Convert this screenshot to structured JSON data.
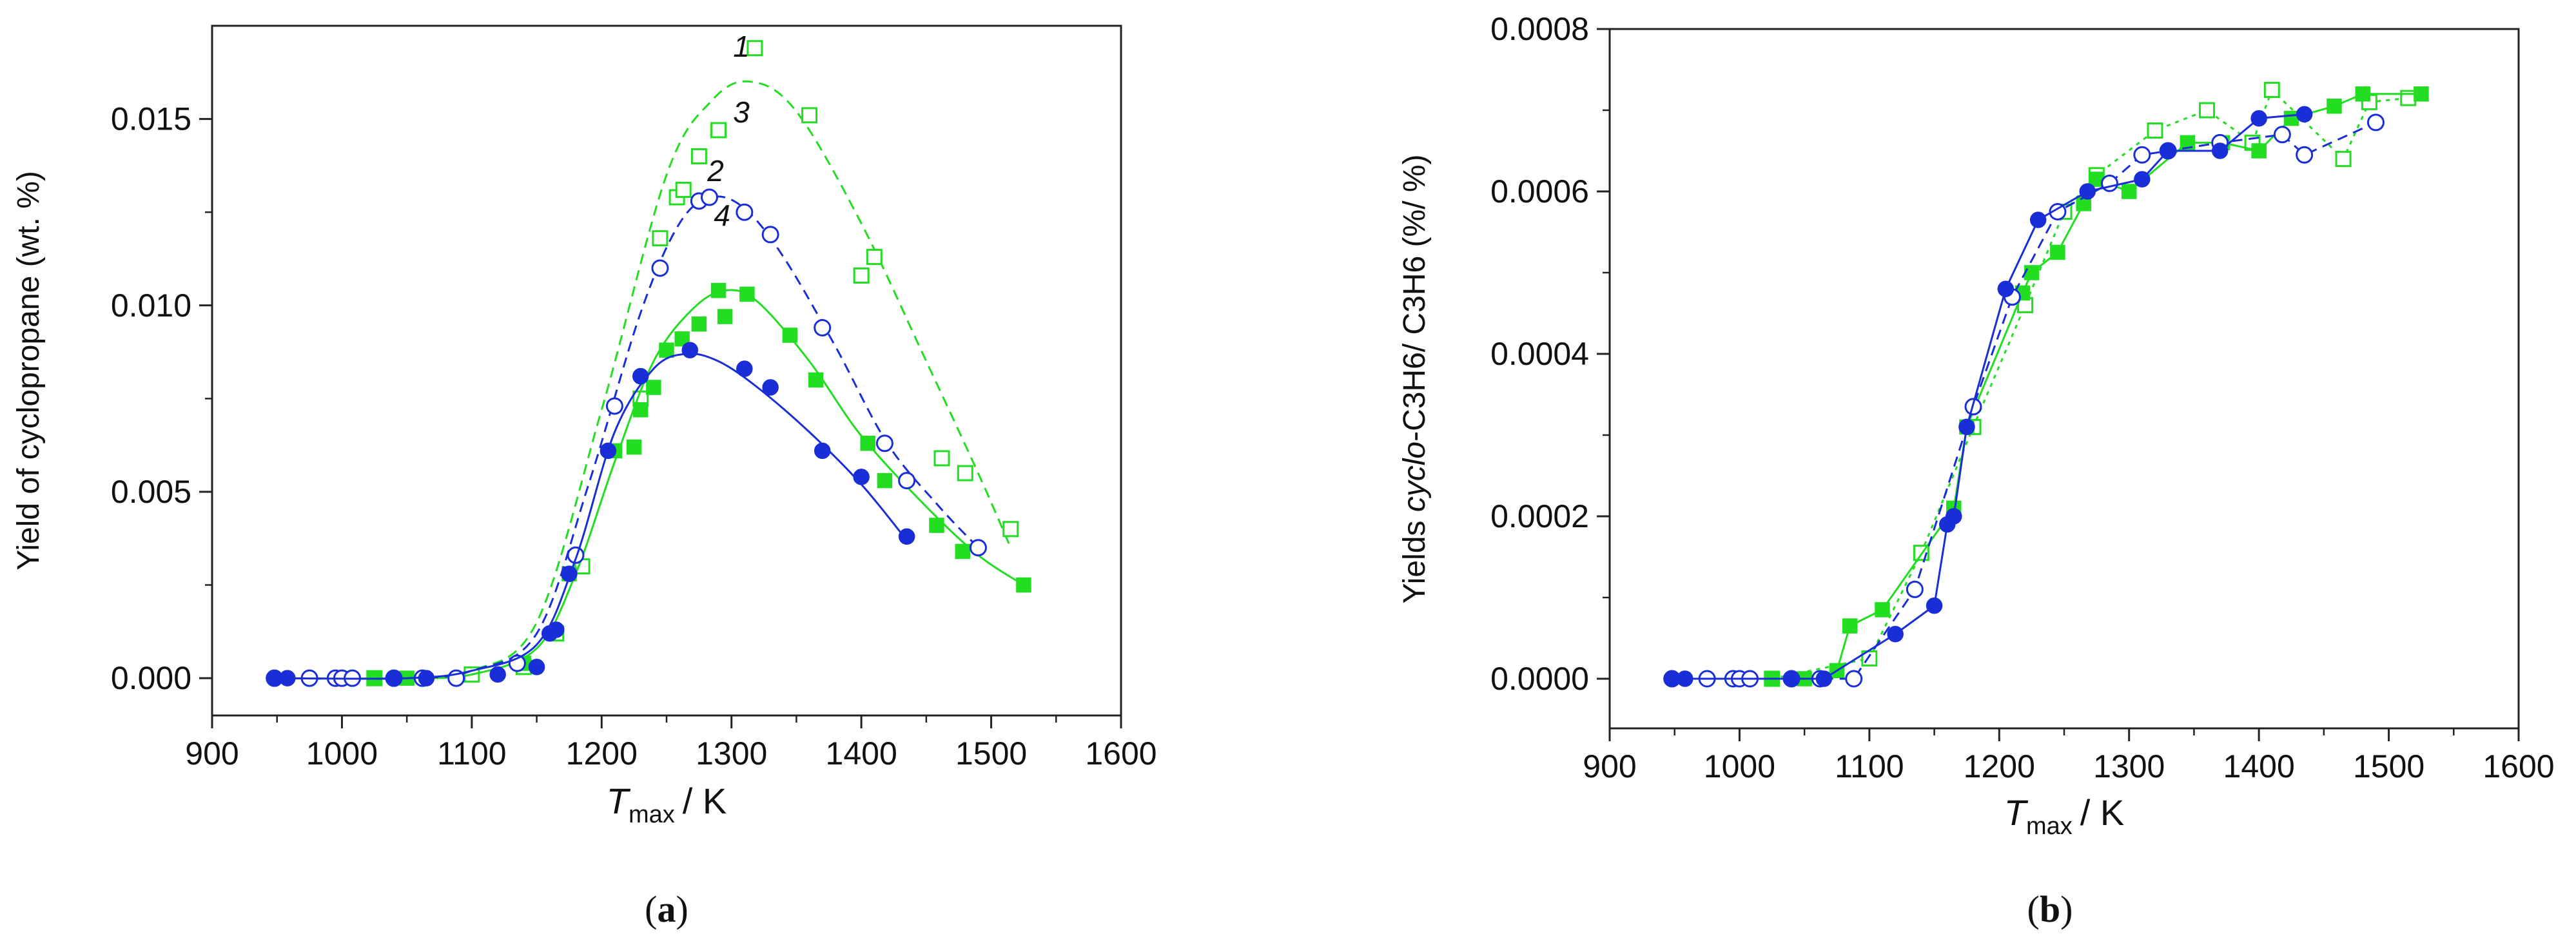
{
  "chart_data": [
    {
      "type": "scatter",
      "panel_label": "(a)",
      "panel_letter": "a",
      "ylabel": "Yield of cyclopropane (wt. %)",
      "xlabel_main": "T",
      "xlabel_sub": "max",
      "xlabel_unit": "/ K",
      "xlim": [
        900,
        1600
      ],
      "ylim": [
        -0.001,
        0.0175
      ],
      "xticks": [
        900,
        1000,
        1100,
        1200,
        1300,
        1400,
        1500,
        1600
      ],
      "xtick_labels": [
        "900",
        "1000",
        "1100",
        "1200",
        "1300",
        "1400",
        "1500",
        "1600"
      ],
      "yticks": [
        0.0,
        0.005,
        0.01,
        0.015
      ],
      "ytick_labels": [
        "0.000",
        "0.005",
        "0.010",
        "0.015"
      ],
      "series": [
        {
          "name": "1",
          "label": "1",
          "marker": "open-square",
          "color": "#22dd22",
          "dash": "dashed",
          "points": [
            [
              1025,
              0.0
            ],
            [
              1100,
              0.0001
            ],
            [
              1140,
              0.0003
            ],
            [
              1165,
              0.0012
            ],
            [
              1185,
              0.003
            ],
            [
              1230,
              0.0075
            ],
            [
              1245,
              0.0118
            ],
            [
              1258,
              0.0129
            ],
            [
              1263,
              0.0131
            ],
            [
              1275,
              0.014
            ],
            [
              1290,
              0.0147
            ],
            [
              1318,
              0.0169
            ],
            [
              1360,
              0.0151
            ],
            [
              1400,
              0.0108
            ],
            [
              1410,
              0.0113
            ],
            [
              1462,
              0.0059
            ],
            [
              1480,
              0.0055
            ],
            [
              1515,
              0.004
            ]
          ],
          "curve": [
            [
              950,
              0.0
            ],
            [
              1050,
              0.0
            ],
            [
              1100,
              0.0002
            ],
            [
              1150,
              0.0015
            ],
            [
              1200,
              0.0072
            ],
            [
              1250,
              0.0135
            ],
            [
              1285,
              0.0155
            ],
            [
              1315,
              0.016
            ],
            [
              1350,
              0.0152
            ],
            [
              1400,
              0.0122
            ],
            [
              1450,
              0.0085
            ],
            [
              1490,
              0.0055
            ],
            [
              1515,
              0.0035
            ]
          ]
        },
        {
          "name": "2",
          "label": "2",
          "marker": "filled-square",
          "color": "#22dd22",
          "dash": "solid",
          "points": [
            [
              1025,
              0.0
            ],
            [
              1050,
              0.0
            ],
            [
              1140,
              0.0004
            ],
            [
              1175,
              0.0028
            ],
            [
              1210,
              0.0061
            ],
            [
              1225,
              0.0062
            ],
            [
              1230,
              0.0072
            ],
            [
              1240,
              0.0078
            ],
            [
              1250,
              0.0088
            ],
            [
              1262,
              0.0091
            ],
            [
              1275,
              0.0095
            ],
            [
              1290,
              0.0104
            ],
            [
              1295,
              0.0097
            ],
            [
              1312,
              0.0103
            ],
            [
              1345,
              0.0092
            ],
            [
              1365,
              0.008
            ],
            [
              1405,
              0.0063
            ],
            [
              1418,
              0.0053
            ],
            [
              1458,
              0.0041
            ],
            [
              1478,
              0.0034
            ],
            [
              1525,
              0.0025
            ]
          ],
          "curve": [
            [
              950,
              0.0
            ],
            [
              1050,
              0.0
            ],
            [
              1100,
              0.0001
            ],
            [
              1150,
              0.0008
            ],
            [
              1180,
              0.0028
            ],
            [
              1210,
              0.0058
            ],
            [
              1240,
              0.0085
            ],
            [
              1270,
              0.0099
            ],
            [
              1295,
              0.0104
            ],
            [
              1320,
              0.0101
            ],
            [
              1360,
              0.0085
            ],
            [
              1400,
              0.0065
            ],
            [
              1450,
              0.0046
            ],
            [
              1490,
              0.0033
            ],
            [
              1525,
              0.0025
            ]
          ]
        },
        {
          "name": "3",
          "label": "3",
          "marker": "open-circle",
          "color": "#1a2ed8",
          "dash": "dashed",
          "points": [
            [
              948,
              0.0
            ],
            [
              975,
              0.0
            ],
            [
              995,
              0.0
            ],
            [
              1000,
              0.0
            ],
            [
              1008,
              0.0
            ],
            [
              1040,
              0.0
            ],
            [
              1062,
              0.0
            ],
            [
              1088,
              0.0
            ],
            [
              1135,
              0.0004
            ],
            [
              1180,
              0.0033
            ],
            [
              1210,
              0.0073
            ],
            [
              1245,
              0.011
            ],
            [
              1275,
              0.0128
            ],
            [
              1283,
              0.0129
            ],
            [
              1310,
              0.0125
            ],
            [
              1330,
              0.0119
            ],
            [
              1370,
              0.0094
            ],
            [
              1418,
              0.0063
            ],
            [
              1435,
              0.0053
            ],
            [
              1490,
              0.0035
            ]
          ],
          "curve": [
            [
              950,
              0.0
            ],
            [
              1050,
              0.0
            ],
            [
              1100,
              0.0002
            ],
            [
              1150,
              0.0012
            ],
            [
              1190,
              0.0052
            ],
            [
              1230,
              0.0098
            ],
            [
              1260,
              0.0122
            ],
            [
              1285,
              0.0129
            ],
            [
              1310,
              0.0126
            ],
            [
              1340,
              0.0113
            ],
            [
              1380,
              0.0089
            ],
            [
              1420,
              0.0063
            ],
            [
              1460,
              0.0046
            ],
            [
              1490,
              0.0035
            ]
          ]
        },
        {
          "name": "4",
          "label": "4",
          "marker": "filled-circle",
          "color": "#1a2ed8",
          "dash": "solid",
          "points": [
            [
              948,
              0.0
            ],
            [
              958,
              0.0
            ],
            [
              1040,
              0.0
            ],
            [
              1065,
              0.0
            ],
            [
              1120,
              0.0001
            ],
            [
              1150,
              0.0003
            ],
            [
              1160,
              0.0012
            ],
            [
              1165,
              0.0013
            ],
            [
              1175,
              0.0028
            ],
            [
              1205,
              0.0061
            ],
            [
              1230,
              0.0081
            ],
            [
              1268,
              0.0088
            ],
            [
              1310,
              0.0083
            ],
            [
              1330,
              0.0078
            ],
            [
              1370,
              0.0061
            ],
            [
              1400,
              0.0054
            ],
            [
              1435,
              0.0038
            ]
          ],
          "curve": [
            [
              950,
              0.0
            ],
            [
              1050,
              0.0
            ],
            [
              1100,
              0.0002
            ],
            [
              1150,
              0.0009
            ],
            [
              1180,
              0.0032
            ],
            [
              1210,
              0.0066
            ],
            [
              1240,
              0.0083
            ],
            [
              1265,
              0.0087
            ],
            [
              1290,
              0.0085
            ],
            [
              1320,
              0.0078
            ],
            [
              1360,
              0.0066
            ],
            [
              1400,
              0.0052
            ],
            [
              1435,
              0.0037
            ]
          ]
        }
      ]
    },
    {
      "type": "line",
      "panel_label": "(b)",
      "panel_letter": "b",
      "ylabel_prefix": "Yields ",
      "ylabel_italic": "cyclo",
      "ylabel_suffix": "-C3H6/ C3H6 (%/ %)",
      "xlabel_main": "T",
      "xlabel_sub": "max",
      "xlabel_unit": "/ K",
      "xlim": [
        900,
        1600
      ],
      "ylim": [
        -6.11e-05,
        0.0008
      ],
      "xticks": [
        900,
        1000,
        1100,
        1200,
        1300,
        1400,
        1500,
        1600
      ],
      "xtick_labels": [
        "900",
        "1000",
        "1100",
        "1200",
        "1300",
        "1400",
        "1500",
        "1600"
      ],
      "yticks": [
        0.0,
        0.0002,
        0.0004,
        0.0006,
        0.0008
      ],
      "ytick_labels": [
        "0.0000",
        "0.0002",
        "0.0004",
        "0.0006",
        "0.0008"
      ],
      "series": [
        {
          "name": "1",
          "marker": "open-square",
          "color": "#22dd22",
          "dash": "dotted",
          "points": [
            [
              1025,
              0.0
            ],
            [
              1100,
              2.5e-05
            ],
            [
              1140,
              0.000155
            ],
            [
              1180,
              0.00031
            ],
            [
              1220,
              0.00046
            ],
            [
              1250,
              0.000575
            ],
            [
              1275,
              0.00062
            ],
            [
              1320,
              0.000675
            ],
            [
              1360,
              0.0007
            ],
            [
              1395,
              0.00066
            ],
            [
              1410,
              0.000725
            ],
            [
              1465,
              0.00064
            ],
            [
              1485,
              0.00071
            ],
            [
              1515,
              0.000715
            ]
          ]
        },
        {
          "name": "2",
          "marker": "filled-square",
          "color": "#22dd22",
          "dash": "solid",
          "points": [
            [
              1025,
              0.0
            ],
            [
              1050,
              0.0
            ],
            [
              1075,
              1e-05
            ],
            [
              1085,
              6.5e-05
            ],
            [
              1110,
              8.5e-05
            ],
            [
              1165,
              0.00021
            ],
            [
              1175,
              0.00031
            ],
            [
              1218,
              0.000475
            ],
            [
              1225,
              0.0005
            ],
            [
              1245,
              0.000525
            ],
            [
              1265,
              0.000585
            ],
            [
              1275,
              0.000615
            ],
            [
              1300,
              0.0006
            ],
            [
              1345,
              0.00066
            ],
            [
              1372,
              0.00066
            ],
            [
              1400,
              0.00065
            ],
            [
              1425,
              0.00069
            ],
            [
              1458,
              0.000705
            ],
            [
              1480,
              0.00072
            ],
            [
              1525,
              0.00072
            ]
          ]
        },
        {
          "name": "3",
          "marker": "open-circle",
          "color": "#1a2ed8",
          "dash": "dashed",
          "points": [
            [
              948,
              0.0
            ],
            [
              975,
              0.0
            ],
            [
              995,
              0.0
            ],
            [
              1000,
              0.0
            ],
            [
              1008,
              0.0
            ],
            [
              1040,
              0.0
            ],
            [
              1062,
              0.0
            ],
            [
              1088,
              0.0
            ],
            [
              1135,
              0.00011
            ],
            [
              1180,
              0.000335
            ],
            [
              1210,
              0.00047
            ],
            [
              1245,
              0.000575
            ],
            [
              1285,
              0.00061
            ],
            [
              1310,
              0.000645
            ],
            [
              1330,
              0.00065
            ],
            [
              1370,
              0.00066
            ],
            [
              1418,
              0.00067
            ],
            [
              1435,
              0.000645
            ],
            [
              1490,
              0.000685
            ]
          ]
        },
        {
          "name": "4",
          "marker": "filled-circle",
          "color": "#1a2ed8",
          "dash": "solid",
          "points": [
            [
              948,
              0.0
            ],
            [
              958,
              0.0
            ],
            [
              1040,
              0.0
            ],
            [
              1065,
              0.0
            ],
            [
              1120,
              5.5e-05
            ],
            [
              1150,
              9e-05
            ],
            [
              1160,
              0.00019
            ],
            [
              1165,
              0.0002
            ],
            [
              1175,
              0.00031
            ],
            [
              1205,
              0.00048
            ],
            [
              1230,
              0.000565
            ],
            [
              1268,
              0.0006
            ],
            [
              1310,
              0.000615
            ],
            [
              1330,
              0.00065
            ],
            [
              1370,
              0.00065
            ],
            [
              1400,
              0.00069
            ],
            [
              1435,
              0.000695
            ]
          ]
        }
      ]
    }
  ]
}
